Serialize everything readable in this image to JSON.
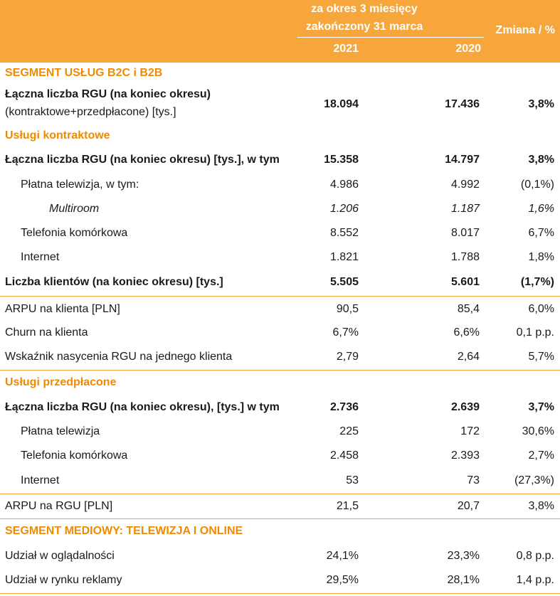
{
  "header": {
    "period_line1": "za okres 3 miesięcy",
    "period_line2": "zakończony 31 marca",
    "year_a": "2021",
    "year_b": "2020",
    "change": "Zmiana / %",
    "fill_color": "#f7a63b"
  },
  "sections": {
    "b2c": "SEGMENT USŁUG B2C i B2B",
    "contract": "Usługi kontraktowe",
    "prepaid": "Usługi przedpłacone",
    "media": "SEGMENT MEDIOWY: TELEWIZJA I ONLINE",
    "section_color": "#f08a00"
  },
  "rgu_total": {
    "label1": "Łączna liczba RGU (na koniec okresu)",
    "label2": "(kontraktowe+przedpłacone) [tys.]",
    "v2021": "18.094",
    "v2020": "17.436",
    "change": "3,8%"
  },
  "rows": [
    {
      "label": "Łączna liczba RGU (na koniec okresu) [tys.], w tym",
      "v2021": "15.358",
      "v2020": "14.797",
      "change": "3,8%"
    },
    {
      "label": "Płatna telewizja, w tym:",
      "v2021": "4.986",
      "v2020": "4.992",
      "change": "(0,1%)"
    },
    {
      "label": "Multiroom",
      "v2021": "1.206",
      "v2020": "1.187",
      "change": "1,6%"
    },
    {
      "label": "Telefonia komórkowa",
      "v2021": "8.552",
      "v2020": "8.017",
      "change": "6,7%"
    },
    {
      "label": "Internet",
      "v2021": "1.821",
      "v2020": "1.788",
      "change": "1,8%"
    },
    {
      "label": "Liczba klientów (na koniec okresu) [tys.]",
      "v2021": "5.505",
      "v2020": "5.601",
      "change": "(1,7%)"
    },
    {
      "label": "ARPU na klienta [PLN]",
      "v2021": "90,5",
      "v2020": "85,4",
      "change": "6,0%"
    },
    {
      "label": "Churn na klienta",
      "v2021": "6,7%",
      "v2020": "6,6%",
      "change": "0,1 p.p."
    },
    {
      "label": "Wskaźnik nasycenia RGU na jednego klienta",
      "v2021": "2,79",
      "v2020": "2,64",
      "change": "5,7%"
    },
    {
      "label": "Łączna liczba RGU (na koniec okresu), [tys.] w tym",
      "v2021": "2.736",
      "v2020": "2.639",
      "change": "3,7%"
    },
    {
      "label": "Płatna telewizja",
      "v2021": "225",
      "v2020": "172",
      "change": "30,6%"
    },
    {
      "label": "Telefonia komórkowa",
      "v2021": "2.458",
      "v2020": "2.393",
      "change": "2,7%"
    },
    {
      "label": "Internet",
      "v2021": "53",
      "v2020": "73",
      "change": "(27,3%)"
    },
    {
      "label": "ARPU na RGU [PLN]",
      "v2021": "21,5",
      "v2020": "20,7",
      "change": "3,8%"
    },
    {
      "label": "Udział w oglądalności",
      "v2021": "24,1%",
      "v2020": "23,3%",
      "change": "0,8 p.p."
    },
    {
      "label": "Udział w rynku reklamy",
      "v2021": "29,5%",
      "v2020": "28,1%",
      "change": "1,4 p.p."
    }
  ]
}
